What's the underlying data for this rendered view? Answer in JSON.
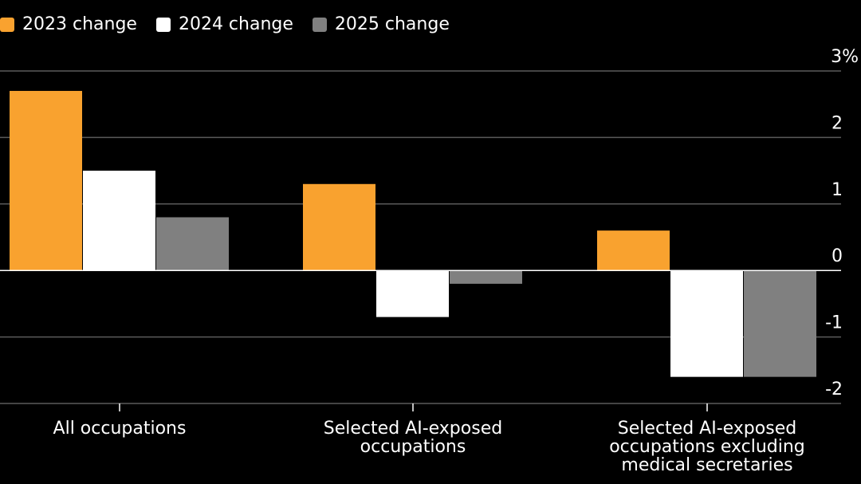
{
  "colors": {
    "background": "#000000",
    "series_2023": "#f9a22f",
    "series_2024": "#ffffff",
    "series_2025": "#808080",
    "grid": "#5a5a5a",
    "zero_line": "#ffffff"
  },
  "chart_data": {
    "type": "bar",
    "categories": [
      [
        "All occupations"
      ],
      [
        "Selected AI-exposed",
        "occupations"
      ],
      [
        "Selected AI-exposed",
        "occupations excluding",
        "medical secretaries"
      ]
    ],
    "series": [
      {
        "name": "2023 change",
        "color": "#f9a22f",
        "values": [
          2.7,
          1.3,
          0.6
        ]
      },
      {
        "name": "2024 change",
        "color": "#ffffff",
        "values": [
          1.5,
          -0.7,
          -1.6
        ]
      },
      {
        "name": "2025 change",
        "color": "#808080",
        "values": [
          0.8,
          -0.2,
          -1.6
        ]
      }
    ],
    "yticks": [
      {
        "value": 3,
        "label": "3%"
      },
      {
        "value": 2,
        "label": "2"
      },
      {
        "value": 1,
        "label": "1"
      },
      {
        "value": 0,
        "label": "0"
      },
      {
        "value": -1,
        "label": "-1"
      },
      {
        "value": -2,
        "label": "-2"
      }
    ],
    "ylim": [
      -2,
      3
    ],
    "grid": true,
    "legend_position": "top-left",
    "y_axis_side": "right",
    "xlabel": "",
    "ylabel": ""
  }
}
